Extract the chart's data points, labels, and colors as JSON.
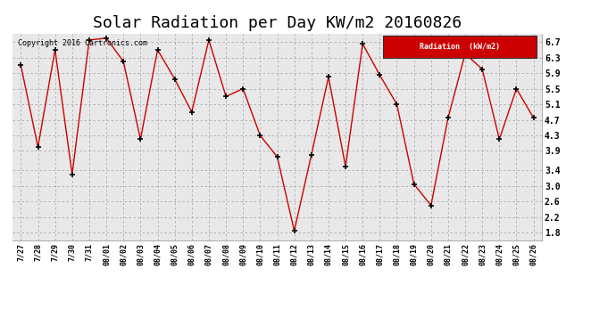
{
  "title": "Solar Radiation per Day KW/m2 20160826",
  "copyright_text": "Copyright 2016 Cartronics.com",
  "legend_label": "Radiation  (kW/m2)",
  "dates": [
    "7/27",
    "7/28",
    "7/29",
    "7/30",
    "7/31",
    "08/01",
    "08/02",
    "08/03",
    "08/04",
    "08/05",
    "08/06",
    "08/07",
    "08/08",
    "08/09",
    "08/10",
    "08/11",
    "08/12",
    "08/13",
    "08/14",
    "08/15",
    "08/16",
    "08/17",
    "08/18",
    "08/19",
    "08/20",
    "08/21",
    "08/22",
    "08/23",
    "08/24",
    "08/25",
    "08/26"
  ],
  "values": [
    6.1,
    4.0,
    6.5,
    3.3,
    6.75,
    6.8,
    6.2,
    4.2,
    6.5,
    5.75,
    4.9,
    6.75,
    5.3,
    5.5,
    4.3,
    3.75,
    1.85,
    3.8,
    5.8,
    3.5,
    6.65,
    5.85,
    5.1,
    3.05,
    2.5,
    4.75,
    6.4,
    6.0,
    4.2,
    5.5,
    4.75
  ],
  "line_color": "#cc0000",
  "marker_color": "#000000",
  "background_color": "#ffffff",
  "plot_bg_color": "#e8e8e8",
  "grid_color": "#aaaaaa",
  "ylim": [
    1.6,
    6.92
  ],
  "yticks": [
    1.8,
    2.2,
    2.6,
    3.0,
    3.4,
    3.9,
    4.3,
    4.7,
    5.1,
    5.5,
    5.9,
    6.3,
    6.7
  ],
  "title_fontsize": 13,
  "legend_bg": "#cc0000",
  "legend_text_color": "#ffffff"
}
